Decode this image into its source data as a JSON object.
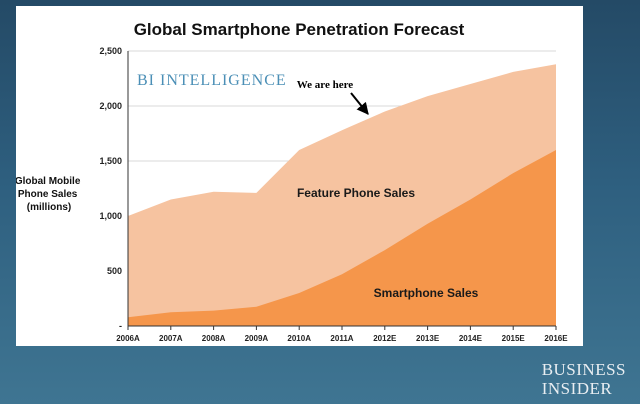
{
  "colors": {
    "feature_fill": "#f6c3a0",
    "smartphone_fill": "#f5964b",
    "bi_text": "#4b8fb6",
    "page_bg": "#2e5f7f"
  },
  "branding": {
    "line1": "BUSINESS",
    "line2": "INSIDER"
  },
  "chart_data": {
    "type": "area",
    "title": "Global Smartphone Penetration Forecast",
    "watermark": "BI INTELLIGENCE",
    "ylabel_lines": [
      "Global Mobile",
      "Phone Sales",
      "(millions)"
    ],
    "xlabel": "",
    "categories": [
      "2006A",
      "2007A",
      "2008A",
      "2009A",
      "2010A",
      "2011A",
      "2012E",
      "2013E",
      "2014E",
      "2015E",
      "2016E"
    ],
    "ylim": [
      0,
      2500
    ],
    "yticks": [
      0,
      500,
      1000,
      1500,
      2000,
      2500
    ],
    "ytick_labels": [
      "-",
      "500",
      "1,000",
      "1,500",
      "2,000",
      "2,500"
    ],
    "grid": true,
    "stacked": false,
    "series": [
      {
        "name": "Feature Phone Sales",
        "values": [
          1000,
          1150,
          1220,
          1210,
          1600,
          1780,
          1950,
          2090,
          2200,
          2310,
          2380
        ]
      },
      {
        "name": "Smartphone Sales",
        "values": [
          80,
          125,
          140,
          175,
          300,
          470,
          690,
          930,
          1150,
          1390,
          1600
        ]
      }
    ],
    "annotations": [
      {
        "text": "We are here",
        "points_to_category": "2012E",
        "points_to_value": 1950
      }
    ]
  }
}
